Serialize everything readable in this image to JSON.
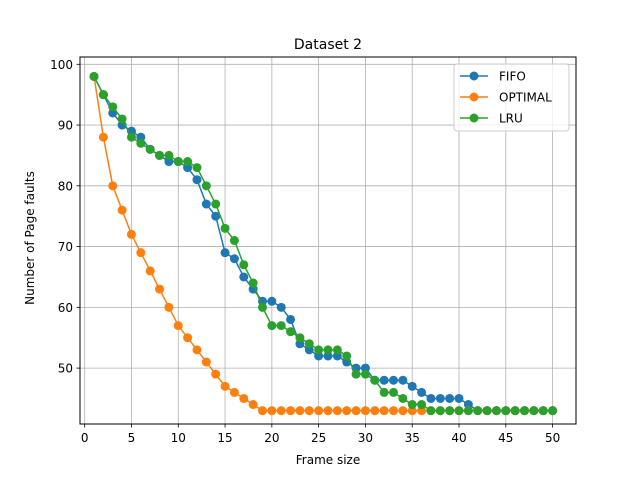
{
  "chart_data": {
    "type": "line",
    "title": "Dataset 2",
    "xlabel": "Frame size",
    "ylabel": "Number of Page faults",
    "xlim": [
      -0.5,
      52.5
    ],
    "ylim": [
      40.8,
      101.2
    ],
    "xticks": [
      0,
      5,
      10,
      15,
      20,
      25,
      30,
      35,
      40,
      45,
      50
    ],
    "yticks": [
      50,
      60,
      70,
      80,
      90,
      100
    ],
    "grid": true,
    "legend_position": "top-right",
    "x": [
      1,
      2,
      3,
      4,
      5,
      6,
      7,
      8,
      9,
      10,
      11,
      12,
      13,
      14,
      15,
      16,
      17,
      18,
      19,
      20,
      21,
      22,
      23,
      24,
      25,
      26,
      27,
      28,
      29,
      30,
      31,
      32,
      33,
      34,
      35,
      36,
      37,
      38,
      39,
      40,
      41,
      42,
      43,
      44,
      45,
      46,
      47,
      48,
      49,
      50
    ],
    "series": [
      {
        "name": "FIFO",
        "color": "#1f77b4",
        "values": [
          98,
          95,
          92,
          90,
          89,
          88,
          86,
          85,
          84,
          84,
          83,
          81,
          77,
          75,
          69,
          68,
          65,
          63,
          61,
          61,
          60,
          58,
          54,
          53,
          52,
          52,
          52,
          51,
          50,
          50,
          48,
          48,
          48,
          48,
          47,
          46,
          45,
          45,
          45,
          45,
          44,
          43,
          43,
          43,
          43,
          43,
          43,
          43,
          43,
          43
        ]
      },
      {
        "name": "OPTIMAL",
        "color": "#ff7f0e",
        "values": [
          98,
          88,
          80,
          76,
          72,
          69,
          66,
          63,
          60,
          57,
          55,
          53,
          51,
          49,
          47,
          46,
          45,
          44,
          43,
          43,
          43,
          43,
          43,
          43,
          43,
          43,
          43,
          43,
          43,
          43,
          43,
          43,
          43,
          43,
          43,
          43,
          43,
          43,
          43,
          43,
          43,
          43,
          43,
          43,
          43,
          43,
          43,
          43,
          43,
          43
        ]
      },
      {
        "name": "LRU",
        "color": "#2ca02c",
        "values": [
          98,
          95,
          93,
          91,
          88,
          87,
          86,
          85,
          85,
          84,
          84,
          83,
          80,
          77,
          73,
          71,
          67,
          64,
          60,
          57,
          57,
          56,
          55,
          54,
          53,
          53,
          53,
          52,
          49,
          49,
          48,
          46,
          46,
          45,
          44,
          44,
          43,
          43,
          43,
          43,
          43,
          43,
          43,
          43,
          43,
          43,
          43,
          43,
          43,
          43
        ]
      }
    ]
  }
}
